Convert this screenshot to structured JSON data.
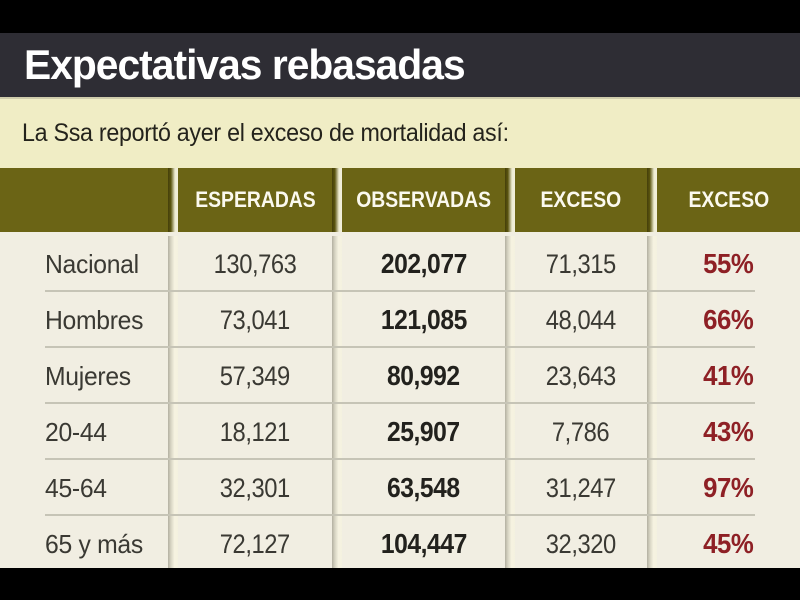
{
  "header": {
    "title": "Expectativas rebasadas",
    "subtitle": "La Ssa reportó ayer el exceso de mortalidad así:"
  },
  "table": {
    "columns": [
      "",
      "ESPERADAS",
      "OBSERVADAS",
      "EXCESO",
      "EXCESO"
    ],
    "rows": [
      {
        "label": "Nacional",
        "esperadas": "130,763",
        "observadas": "202,077",
        "exceso": "71,315",
        "exceso_pct": "55%"
      },
      {
        "label": "Hombres",
        "esperadas": "73,041",
        "observadas": "121,085",
        "exceso": "48,044",
        "exceso_pct": "66%"
      },
      {
        "label": "Mujeres",
        "esperadas": "57,349",
        "observadas": "80,992",
        "exceso": "23,643",
        "exceso_pct": "41%"
      },
      {
        "label": "20-44",
        "esperadas": "18,121",
        "observadas": "25,907",
        "exceso": "7,786",
        "exceso_pct": "43%"
      },
      {
        "label": "45-64",
        "esperadas": "32,301",
        "observadas": "63,548",
        "exceso": "31,247",
        "exceso_pct": "97%"
      },
      {
        "label": "65 y más",
        "esperadas": "72,127",
        "observadas": "104,447",
        "exceso": "32,320",
        "exceso_pct": "45%"
      }
    ]
  },
  "chart_data": {
    "type": "table",
    "title": "Expectativas rebasadas",
    "subtitle": "La Ssa reportó ayer el exceso de mortalidad así:",
    "columns": [
      "",
      "ESPERADAS",
      "OBSERVADAS",
      "EXCESO",
      "EXCESO (%)"
    ],
    "rows": [
      {
        "label": "Nacional",
        "esperadas": 130763,
        "observadas": 202077,
        "exceso": 71315,
        "exceso_pct": 55
      },
      {
        "label": "Hombres",
        "esperadas": 73041,
        "observadas": 121085,
        "exceso": 48044,
        "exceso_pct": 66
      },
      {
        "label": "Mujeres",
        "esperadas": 57349,
        "observadas": 80992,
        "exceso": 23643,
        "exceso_pct": 41
      },
      {
        "label": "20-44",
        "esperadas": 18121,
        "observadas": 25907,
        "exceso": 7786,
        "exceso_pct": 43
      },
      {
        "label": "45-64",
        "esperadas": 32301,
        "observadas": 63548,
        "exceso": 31247,
        "exceso_pct": 97
      },
      {
        "label": "65 y más",
        "esperadas": 72127,
        "observadas": 104447,
        "exceso": 32320,
        "exceso_pct": 45
      }
    ]
  },
  "colors": {
    "frame_black": "#000000",
    "title_bar": "#2e2d34",
    "subtitle_band": "#f0edc5",
    "header_olive": "#6b6415",
    "body_bg": "#f1eee2",
    "accent_red": "#8e2025",
    "text_dark": "#3a3933"
  }
}
